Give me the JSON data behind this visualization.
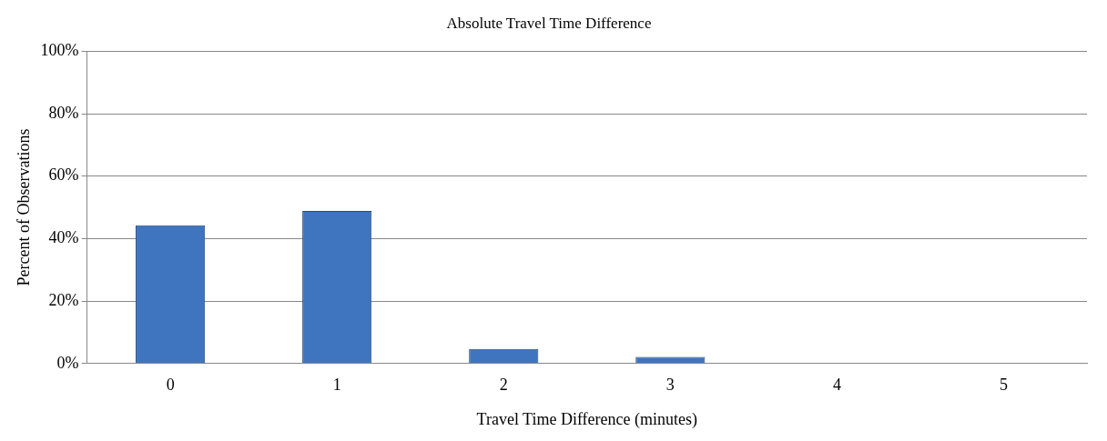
{
  "chart_data": {
    "type": "bar",
    "title": "Absolute Travel Time Difference",
    "xlabel": "Travel Time Difference (minutes)",
    "ylabel": "Percent of Observations",
    "categories": [
      "0",
      "1",
      "2",
      "3",
      "4",
      "5"
    ],
    "values": [
      44.3,
      48.9,
      4.7,
      2.1,
      0,
      0
    ],
    "color": "#3f75be",
    "ylim": [
      0,
      100
    ],
    "yticks": [
      {
        "value": 0,
        "label": "0%"
      },
      {
        "value": 20,
        "label": "20%"
      },
      {
        "value": 40,
        "label": "40%"
      },
      {
        "value": 60,
        "label": "60%"
      },
      {
        "value": 80,
        "label": "80%"
      },
      {
        "value": 100,
        "label": "100%"
      }
    ],
    "grid": "y"
  }
}
